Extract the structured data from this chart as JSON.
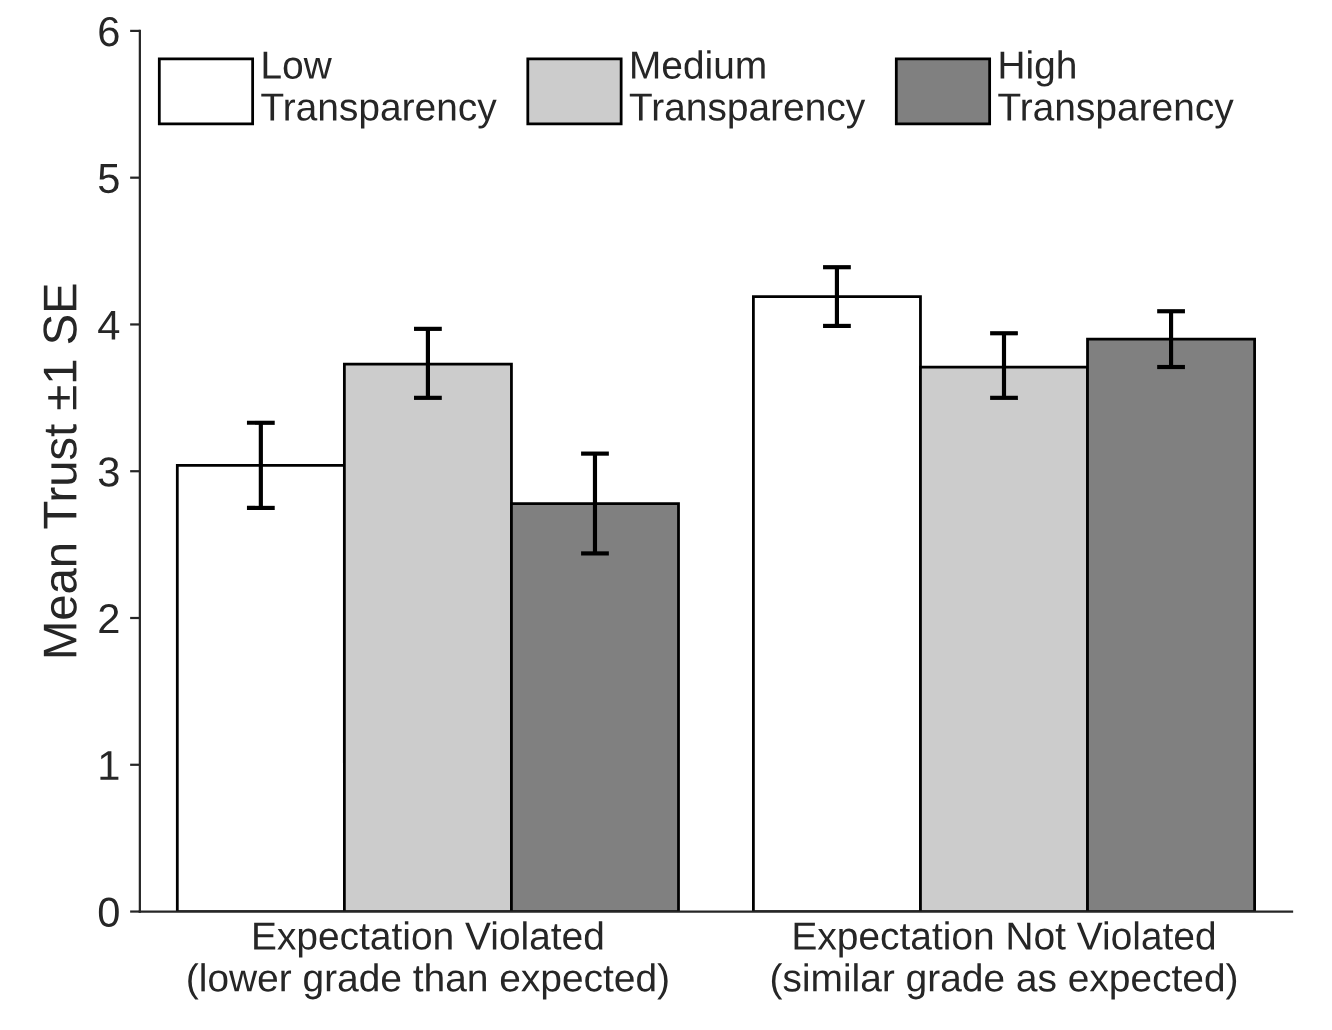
{
  "chart_data": {
    "type": "bar",
    "ylabel": "Mean Trust ±1 SE",
    "categories": [
      "Expectation Violated\n(lower grade than expected)",
      "Expectation Not Violated\n(similar grade as expected)"
    ],
    "series": [
      {
        "name": "Low\nTransparency",
        "color": "#ffffff",
        "values": [
          3.04,
          4.19
        ],
        "errors": [
          [
            2.75,
            3.33
          ],
          [
            3.99,
            4.39
          ]
        ]
      },
      {
        "name": "Medium\nTransparency",
        "color": "#cccccc",
        "values": [
          3.73,
          3.71
        ],
        "errors": [
          [
            3.5,
            3.97
          ],
          [
            3.5,
            3.94
          ]
        ]
      },
      {
        "name": "High\nTransparency",
        "color": "#808080",
        "values": [
          2.78,
          3.9
        ],
        "errors": [
          [
            2.44,
            3.12
          ],
          [
            3.71,
            4.09
          ]
        ]
      }
    ],
    "ylim": [
      0,
      6
    ],
    "yticks": [
      0,
      1,
      2,
      3,
      4,
      5,
      6
    ],
    "grid": false,
    "legend": "top left"
  }
}
